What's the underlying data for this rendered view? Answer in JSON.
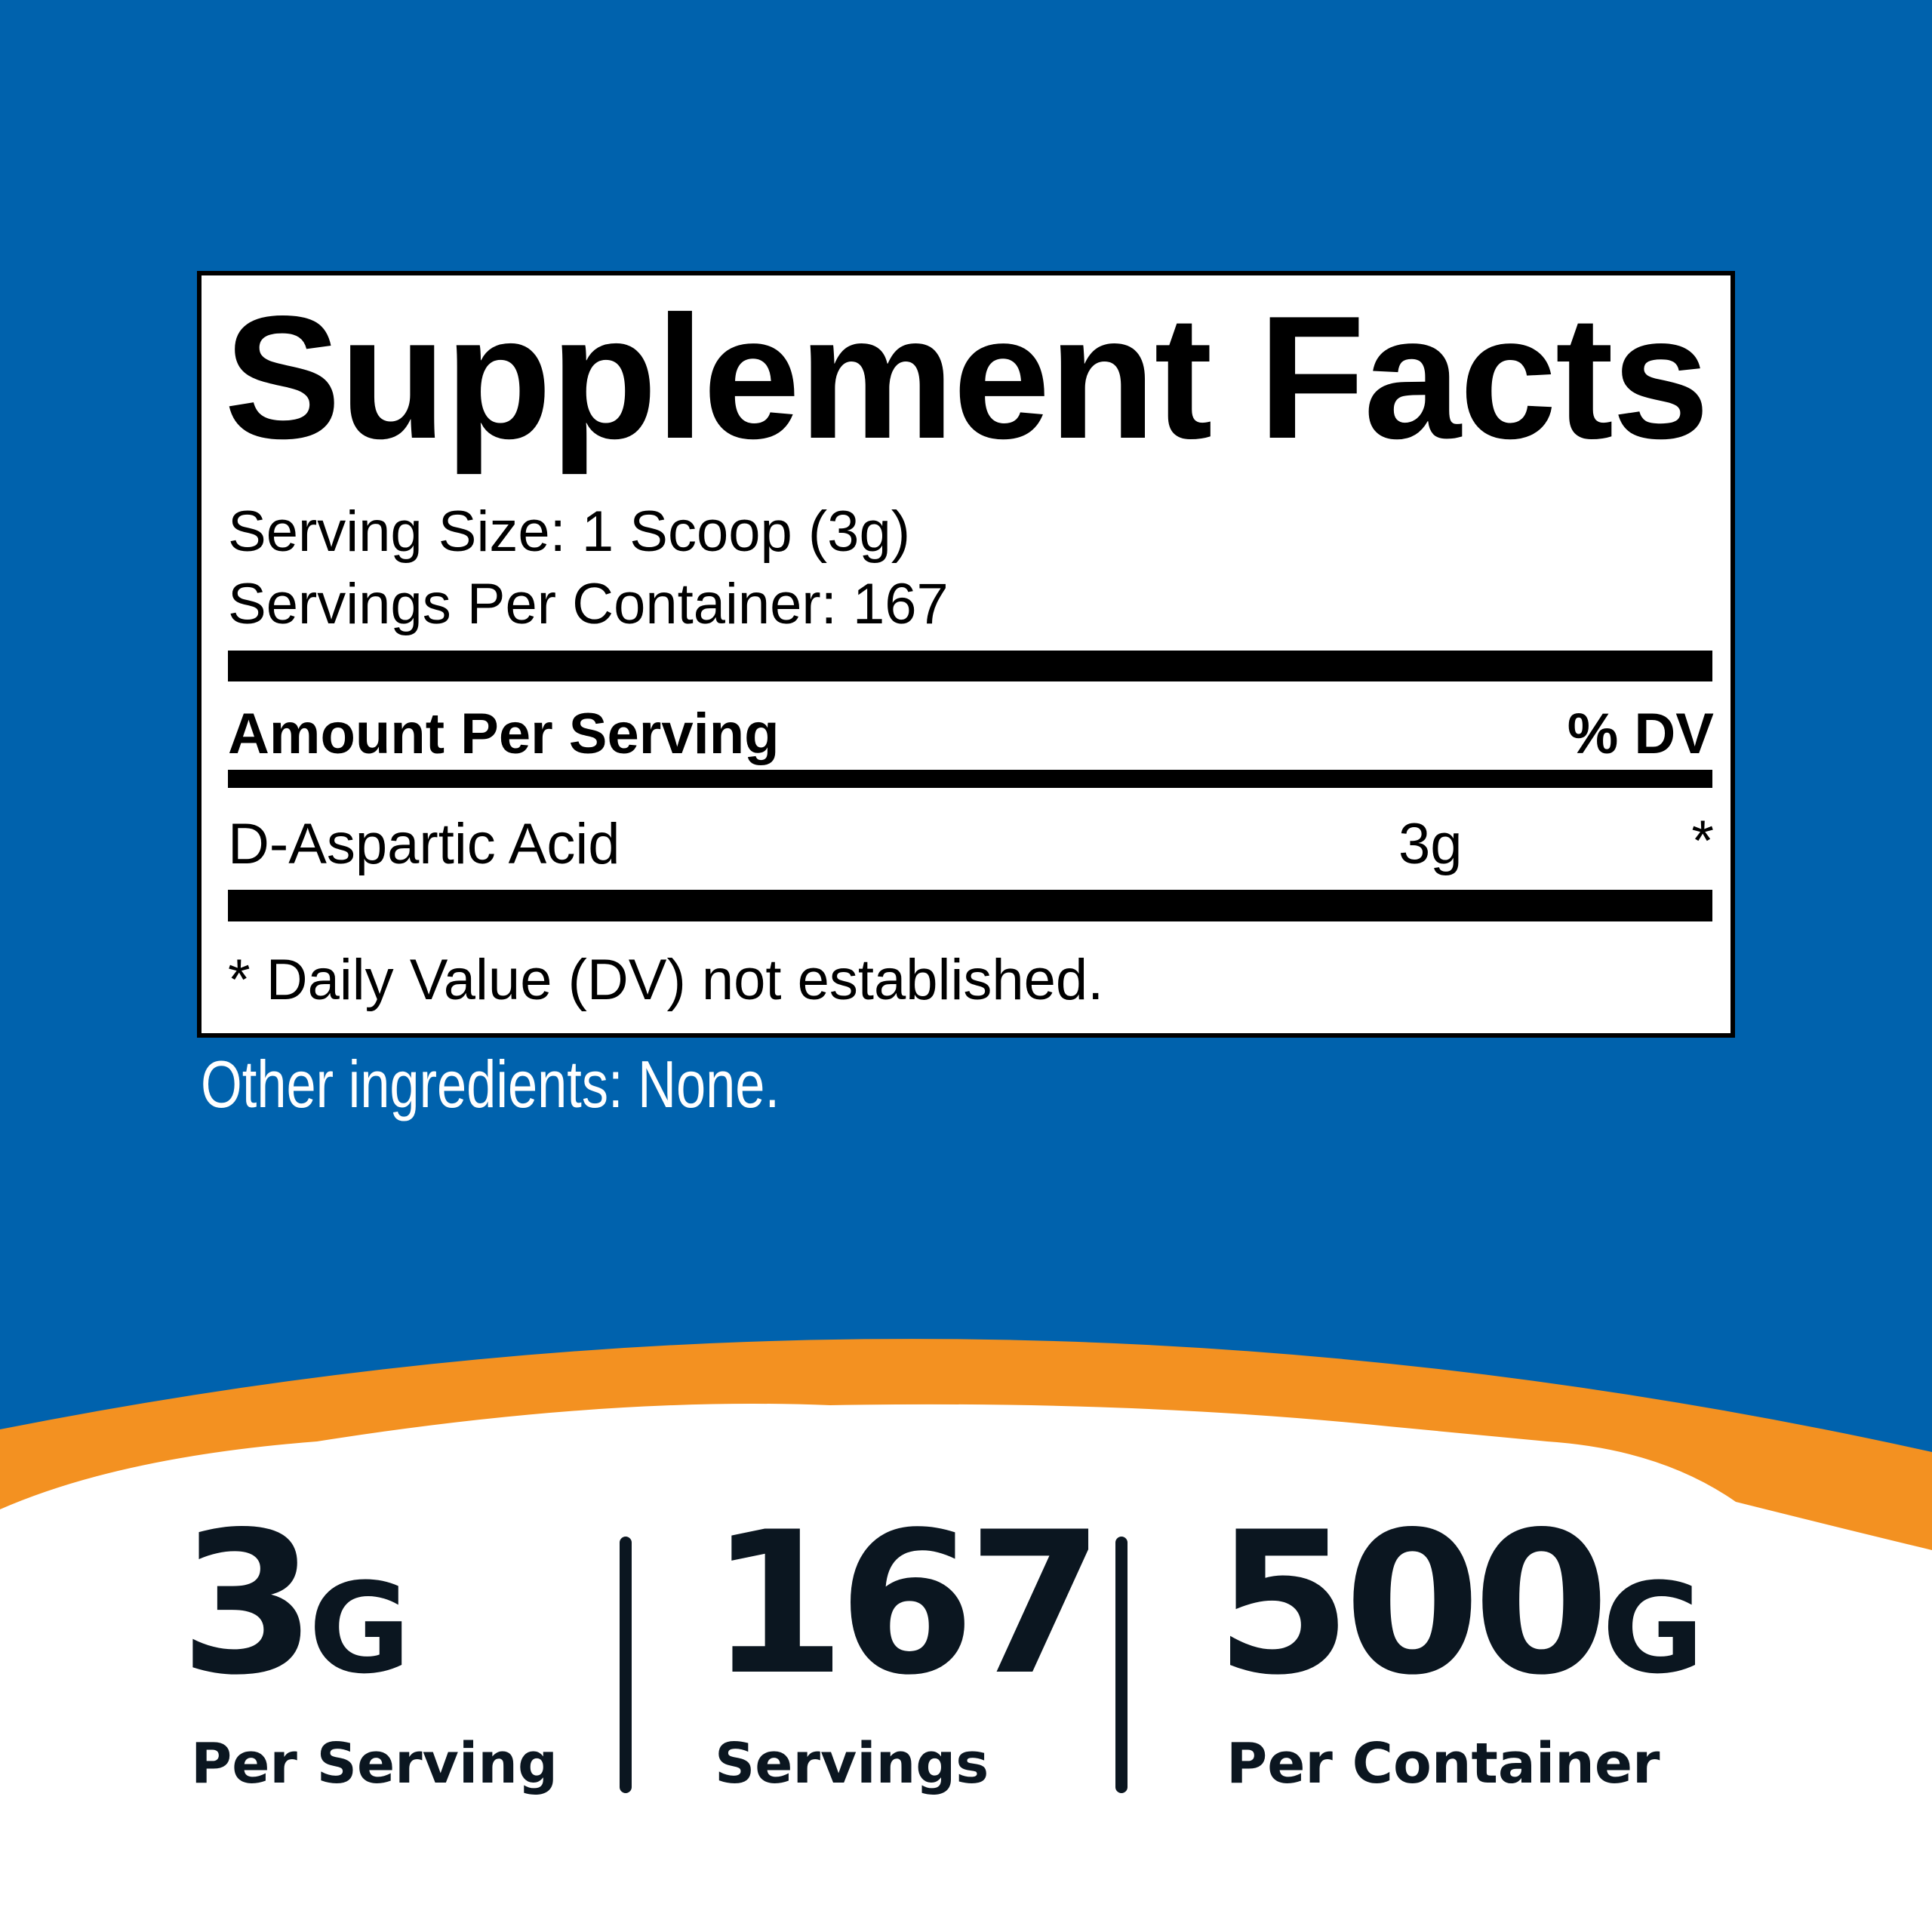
{
  "colors": {
    "background_blue": "#0062AD",
    "accent_orange": "#F39121",
    "stat_text": "#0B1620"
  },
  "label": {
    "title": "Supplement Facts",
    "serving_size": "Serving Size: 1 Scoop (3g)",
    "servings_per_container": "Servings Per Container: 167",
    "amount_header": "Amount Per Serving",
    "dv_header": "% DV",
    "ingredients": [
      {
        "name": "D-Aspartic Acid",
        "amount": "3g",
        "dv": "*"
      }
    ],
    "footnote": "* Daily Value (DV) not established."
  },
  "other_ingredients": "Other ingredients: None.",
  "stats": [
    {
      "value": "3",
      "unit": "G",
      "caption": "Per Serving"
    },
    {
      "value": "167",
      "unit": "",
      "caption": "Servings"
    },
    {
      "value": "500",
      "unit": "G",
      "caption": "Per Container"
    }
  ]
}
